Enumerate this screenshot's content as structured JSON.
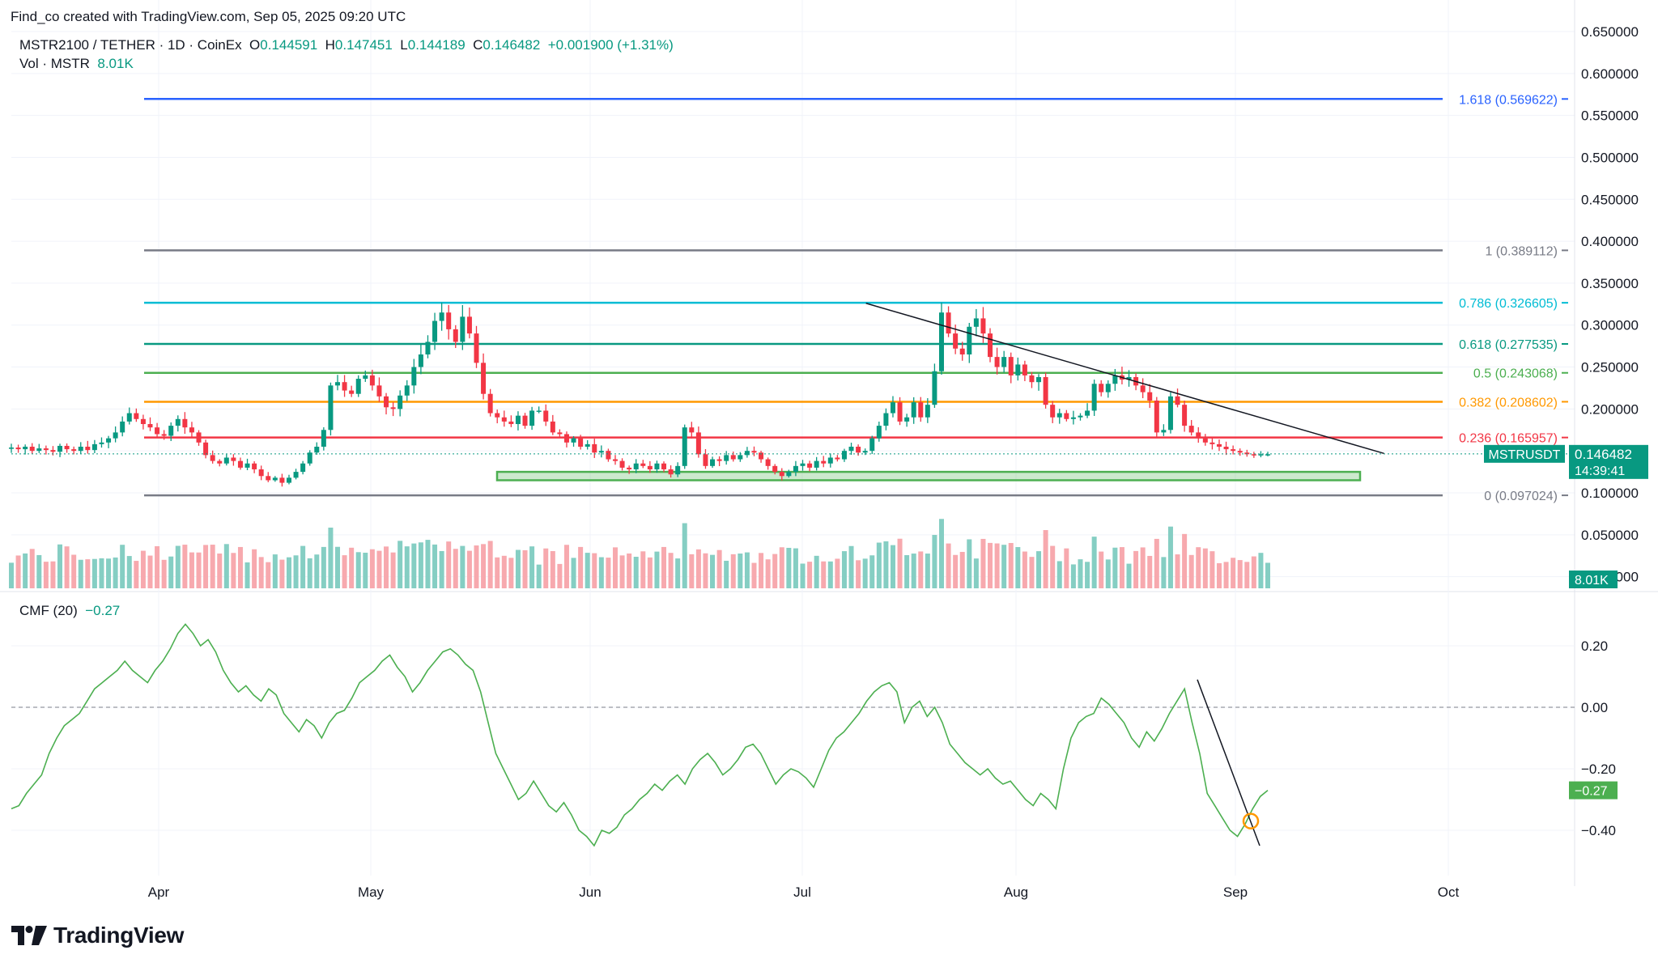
{
  "header": {
    "credit": "Find_co created with TradingView.com, Sep 05, 2025 09:20 UTC",
    "symbol": "MSTR2100 / TETHER · 1D · CoinEx",
    "open_label": "O",
    "open": "0.144591",
    "high_label": "H",
    "high": "0.147451",
    "low_label": "L",
    "low": "0.144189",
    "close_label": "C",
    "close": "0.146482",
    "change": "+0.001900 (+1.31%)",
    "vol_label": "Vol · MSTR",
    "vol_value": "8.01K",
    "cmf_label": "CMF (20)",
    "cmf_value": "−0.27"
  },
  "brand": {
    "name": "TradingView",
    "logo_icon": "tradingview-logo-icon"
  },
  "colors": {
    "up": "#089981",
    "down": "#f23645",
    "up_vol": "#85cec3",
    "down_vol": "#f7a9ae",
    "fib_1618": "#2962ff",
    "fib_1": "#787b86",
    "fib_0786": "#00bcd4",
    "fib_0618": "#089981",
    "fib_05": "#4caf50",
    "fib_0382": "#ff9800",
    "fib_0236": "#f23645",
    "fib_0": "#787b86",
    "cmf_line": "#4caf50",
    "support_zone": "#4caf50",
    "marker": "#ff9800",
    "grid": "#f0f3fa"
  },
  "chart_data": [
    {
      "type": "candlestick",
      "symbol": "MSTRUSDT",
      "timeframe": "1D",
      "ylim": [
        0.04,
        0.65
      ],
      "y_ticks": [
        "0.650000",
        "0.600000",
        "0.550000",
        "0.500000",
        "0.450000",
        "0.400000",
        "0.350000",
        "0.300000",
        "0.250000",
        "0.200000",
        "0.150000",
        "0.100000",
        "0.050000",
        "0.000000"
      ],
      "x_ticks": [
        "Apr",
        "May",
        "Jun",
        "Jul",
        "Aug",
        "Sep",
        "Oct"
      ],
      "last_price_label": "MSTRUSDT",
      "last_price": "0.146482",
      "countdown": "14:39:41",
      "volume_last_label": "8.01K",
      "fibonacci_levels": [
        {
          "label": "1.618 (0.569622)",
          "value": 0.569622
        },
        {
          "label": "1 (0.389112)",
          "value": 0.389112
        },
        {
          "label": "0.786 (0.326605)",
          "value": 0.326605
        },
        {
          "label": "0.618 (0.277535)",
          "value": 0.277535
        },
        {
          "label": "0.5 (0.243068)",
          "value": 0.243068
        },
        {
          "label": "0.382 (0.208602)",
          "value": 0.208602
        },
        {
          "label": "0.236 (0.165957)",
          "value": 0.165957
        },
        {
          "label": "0 (0.097024)",
          "value": 0.097024
        }
      ],
      "support_zone": {
        "low": 0.115,
        "high": 0.125
      },
      "trendline": [
        {
          "date": "2025-07-10",
          "price": 0.326
        },
        {
          "date": "2025-09-22",
          "price": 0.147
        }
      ],
      "closes": [
        0.154,
        0.152,
        0.155,
        0.15,
        0.153,
        0.151,
        0.149,
        0.156,
        0.152,
        0.15,
        0.155,
        0.151,
        0.158,
        0.16,
        0.165,
        0.172,
        0.185,
        0.195,
        0.188,
        0.182,
        0.178,
        0.17,
        0.168,
        0.18,
        0.188,
        0.178,
        0.172,
        0.16,
        0.145,
        0.138,
        0.135,
        0.142,
        0.138,
        0.13,
        0.135,
        0.128,
        0.12,
        0.115,
        0.118,
        0.112,
        0.118,
        0.125,
        0.135,
        0.148,
        0.155,
        0.175,
        0.228,
        0.232,
        0.222,
        0.218,
        0.236,
        0.24,
        0.228,
        0.215,
        0.202,
        0.2,
        0.216,
        0.228,
        0.25,
        0.265,
        0.28,
        0.305,
        0.315,
        0.295,
        0.28,
        0.31,
        0.29,
        0.255,
        0.218,
        0.195,
        0.19,
        0.185,
        0.182,
        0.192,
        0.18,
        0.198,
        0.198,
        0.185,
        0.172,
        0.17,
        0.16,
        0.165,
        0.155,
        0.158,
        0.148,
        0.15,
        0.14,
        0.138,
        0.13,
        0.128,
        0.135,
        0.132,
        0.128,
        0.135,
        0.128,
        0.122,
        0.132,
        0.178,
        0.172,
        0.146,
        0.132,
        0.14,
        0.138,
        0.145,
        0.14,
        0.145,
        0.15,
        0.148,
        0.14,
        0.132,
        0.125,
        0.12,
        0.125,
        0.132,
        0.135,
        0.13,
        0.138,
        0.135,
        0.142,
        0.14,
        0.15,
        0.155,
        0.148,
        0.15,
        0.165,
        0.18,
        0.195,
        0.208,
        0.185,
        0.19,
        0.208,
        0.19,
        0.205,
        0.245,
        0.315,
        0.29,
        0.272,
        0.265,
        0.298,
        0.308,
        0.29,
        0.262,
        0.25,
        0.262,
        0.24,
        0.253,
        0.24,
        0.232,
        0.238,
        0.205,
        0.19,
        0.195,
        0.188,
        0.19,
        0.192,
        0.198,
        0.23,
        0.22,
        0.23,
        0.24,
        0.235,
        0.238,
        0.228,
        0.22,
        0.21,
        0.172,
        0.175,
        0.215,
        0.205,
        0.18,
        0.172,
        0.165,
        0.16,
        0.158,
        0.155,
        0.152,
        0.15,
        0.148,
        0.146,
        0.145,
        0.146,
        0.146
      ],
      "volume_pattern": "relative volume bars, tallest on mid-April and mid-July spikes"
    },
    {
      "type": "line",
      "name": "CMF (20)",
      "ylim": [
        -0.5,
        0.3
      ],
      "y_ticks": [
        "0.20",
        "0.00",
        "−0.20",
        "−0.40"
      ],
      "last_value_label": "−0.27",
      "values": [
        -0.33,
        -0.32,
        -0.28,
        -0.25,
        -0.22,
        -0.15,
        -0.1,
        -0.06,
        -0.04,
        -0.02,
        0.02,
        0.06,
        0.08,
        0.1,
        0.12,
        0.15,
        0.12,
        0.1,
        0.08,
        0.12,
        0.15,
        0.19,
        0.24,
        0.27,
        0.24,
        0.2,
        0.22,
        0.18,
        0.12,
        0.08,
        0.05,
        0.07,
        0.04,
        0.02,
        0.06,
        0.04,
        -0.02,
        -0.05,
        -0.08,
        -0.04,
        -0.06,
        -0.1,
        -0.05,
        -0.02,
        -0.01,
        0.03,
        0.08,
        0.1,
        0.12,
        0.15,
        0.17,
        0.13,
        0.1,
        0.05,
        0.08,
        0.12,
        0.15,
        0.18,
        0.19,
        0.17,
        0.14,
        0.12,
        0.05,
        -0.05,
        -0.15,
        -0.2,
        -0.25,
        -0.3,
        -0.28,
        -0.24,
        -0.28,
        -0.32,
        -0.34,
        -0.31,
        -0.35,
        -0.4,
        -0.42,
        -0.45,
        -0.4,
        -0.41,
        -0.39,
        -0.35,
        -0.33,
        -0.3,
        -0.28,
        -0.25,
        -0.27,
        -0.24,
        -0.22,
        -0.25,
        -0.2,
        -0.17,
        -0.15,
        -0.18,
        -0.22,
        -0.2,
        -0.17,
        -0.13,
        -0.12,
        -0.15,
        -0.2,
        -0.25,
        -0.22,
        -0.2,
        -0.21,
        -0.23,
        -0.26,
        -0.2,
        -0.14,
        -0.1,
        -0.08,
        -0.05,
        -0.02,
        0.02,
        0.05,
        0.07,
        0.08,
        0.05,
        -0.05,
        0.0,
        0.02,
        -0.03,
        0.0,
        -0.05,
        -0.12,
        -0.15,
        -0.18,
        -0.2,
        -0.22,
        -0.2,
        -0.23,
        -0.25,
        -0.24,
        -0.27,
        -0.3,
        -0.32,
        -0.28,
        -0.3,
        -0.33,
        -0.2,
        -0.1,
        -0.05,
        -0.03,
        -0.02,
        0.03,
        0.01,
        -0.02,
        -0.05,
        -0.1,
        -0.13,
        -0.08,
        -0.11,
        -0.07,
        -0.02,
        0.02,
        0.06,
        -0.05,
        -0.15,
        -0.28,
        -0.32,
        -0.36,
        -0.4,
        -0.42,
        -0.38,
        -0.33,
        -0.29,
        -0.27
      ]
    }
  ]
}
